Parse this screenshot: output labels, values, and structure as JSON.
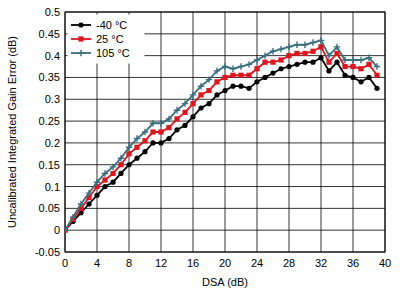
{
  "chart_data": {
    "type": "line",
    "x_label": "DSA (dB)",
    "y_label": "Uncalibrated Integrated Gain Error (dB)",
    "x": [
      0,
      1,
      2,
      3,
      4,
      5,
      6,
      7,
      8,
      9,
      10,
      11,
      12,
      13,
      14,
      15,
      16,
      17,
      18,
      19,
      20,
      21,
      22,
      23,
      24,
      25,
      26,
      27,
      28,
      29,
      30,
      31,
      32,
      33,
      34,
      35,
      36,
      37,
      38,
      39
    ],
    "series": [
      {
        "name": "-40 °C",
        "color": "#000000",
        "marker": "circle",
        "values": [
          0,
          0.02,
          0.04,
          0.06,
          0.08,
          0.1,
          0.11,
          0.13,
          0.15,
          0.165,
          0.18,
          0.2,
          0.2,
          0.21,
          0.23,
          0.24,
          0.26,
          0.28,
          0.29,
          0.31,
          0.32,
          0.33,
          0.33,
          0.325,
          0.34,
          0.35,
          0.36,
          0.37,
          0.375,
          0.38,
          0.385,
          0.385,
          0.395,
          0.365,
          0.385,
          0.355,
          0.35,
          0.34,
          0.35,
          0.325
        ]
      },
      {
        "name": "25 °C",
        "color": "#e0141e",
        "marker": "square",
        "values": [
          0,
          0.025,
          0.05,
          0.075,
          0.1,
          0.115,
          0.13,
          0.15,
          0.175,
          0.19,
          0.205,
          0.225,
          0.225,
          0.235,
          0.255,
          0.27,
          0.29,
          0.31,
          0.32,
          0.34,
          0.35,
          0.355,
          0.355,
          0.355,
          0.37,
          0.385,
          0.385,
          0.39,
          0.4,
          0.405,
          0.405,
          0.41,
          0.42,
          0.385,
          0.405,
          0.375,
          0.375,
          0.37,
          0.38,
          0.355
        ]
      },
      {
        "name": "105 °C",
        "color": "#3a6f7e",
        "marker": "plus",
        "values": [
          0,
          0.03,
          0.06,
          0.085,
          0.11,
          0.13,
          0.145,
          0.165,
          0.19,
          0.21,
          0.225,
          0.245,
          0.245,
          0.255,
          0.275,
          0.29,
          0.31,
          0.33,
          0.345,
          0.365,
          0.375,
          0.37,
          0.375,
          0.38,
          0.39,
          0.4,
          0.41,
          0.415,
          0.42,
          0.425,
          0.425,
          0.43,
          0.435,
          0.4,
          0.42,
          0.39,
          0.39,
          0.39,
          0.395,
          0.375
        ]
      }
    ],
    "xlim": [
      0,
      40
    ],
    "xticks": [
      0,
      4,
      8,
      12,
      16,
      20,
      24,
      28,
      32,
      36,
      40
    ],
    "ylim": [
      -0.05,
      0.5
    ],
    "yticks": [
      -0.05,
      0,
      0.05,
      0.1,
      0.15,
      0.2,
      0.25,
      0.3,
      0.35,
      0.4,
      0.45,
      0.5
    ],
    "grid": true,
    "legend": "upper left"
  }
}
